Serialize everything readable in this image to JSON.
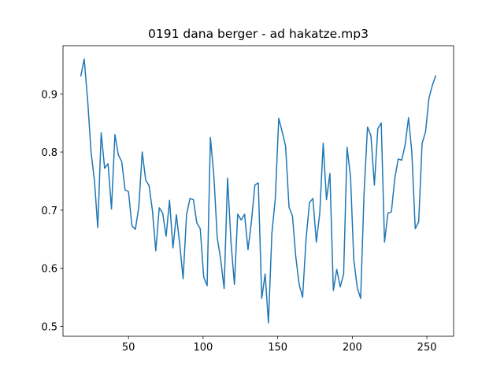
{
  "chart_data": {
    "type": "line",
    "title": "0191 dana berger - ad hakatze.mp3",
    "x": [
      18.0,
      20.3,
      22.6,
      24.9,
      27.2,
      29.4,
      31.7,
      34.0,
      36.3,
      38.6,
      40.9,
      43.2,
      45.5,
      47.7,
      50.0,
      52.3,
      54.6,
      56.9,
      59.2,
      61.5,
      63.8,
      66.0,
      68.3,
      70.6,
      72.9,
      75.2,
      77.5,
      79.8,
      82.1,
      84.4,
      86.6,
      88.9,
      91.2,
      93.5,
      95.8,
      98.1,
      100.4,
      102.7,
      104.9,
      107.2,
      109.5,
      111.8,
      114.1,
      116.4,
      118.7,
      121.0,
      123.2,
      125.5,
      127.8,
      130.1,
      132.4,
      134.7,
      137.0,
      139.3,
      141.6,
      143.8,
      146.1,
      148.4,
      150.7,
      153.0,
      155.3,
      157.6,
      159.9,
      162.1,
      164.4,
      166.7,
      169.0,
      171.3,
      173.6,
      175.9,
      178.2,
      180.5,
      182.7,
      185.0,
      187.3,
      189.6,
      191.9,
      194.2,
      196.5,
      198.8,
      201.0,
      203.3,
      205.6,
      207.9,
      210.2,
      212.5,
      214.8,
      217.1,
      219.4,
      221.6,
      223.9,
      226.2,
      228.5,
      230.8,
      233.1,
      235.4,
      237.7,
      239.9,
      242.2,
      244.5,
      246.8,
      249.1,
      251.4,
      253.7,
      256.0
    ],
    "series": [
      {
        "color": "#1f77b4",
        "values": [
          0.93,
          0.96,
          0.89,
          0.8,
          0.75,
          0.67,
          0.833,
          0.772,
          0.78,
          0.702,
          0.83,
          0.795,
          0.783,
          0.735,
          0.732,
          0.673,
          0.667,
          0.705,
          0.8,
          0.752,
          0.742,
          0.7,
          0.63,
          0.704,
          0.695,
          0.655,
          0.717,
          0.635,
          0.692,
          0.64,
          0.582,
          0.692,
          0.72,
          0.718,
          0.678,
          0.668,
          0.585,
          0.57,
          0.825,
          0.76,
          0.652,
          0.615,
          0.565,
          0.755,
          0.645,
          0.572,
          0.693,
          0.683,
          0.693,
          0.632,
          0.68,
          0.743,
          0.747,
          0.548,
          0.59,
          0.506,
          0.66,
          0.72,
          0.858,
          0.835,
          0.81,
          0.705,
          0.69,
          0.62,
          0.572,
          0.55,
          0.65,
          0.713,
          0.72,
          0.645,
          0.695,
          0.815,
          0.718,
          0.763,
          0.562,
          0.598,
          0.568,
          0.59,
          0.808,
          0.758,
          0.615,
          0.567,
          0.548,
          0.73,
          0.843,
          0.828,
          0.743,
          0.84,
          0.85,
          0.645,
          0.695,
          0.697,
          0.755,
          0.788,
          0.786,
          0.812,
          0.859,
          0.8,
          0.668,
          0.68,
          0.815,
          0.835,
          0.893,
          0.915,
          0.932
        ]
      }
    ],
    "xlim": [
      6.1,
      267.9
    ],
    "ylim": [
      0.483,
      0.983
    ],
    "xticks": [
      50,
      100,
      150,
      200,
      250
    ],
    "yticks": [
      0.5,
      0.6,
      0.7,
      0.8,
      0.9
    ]
  }
}
